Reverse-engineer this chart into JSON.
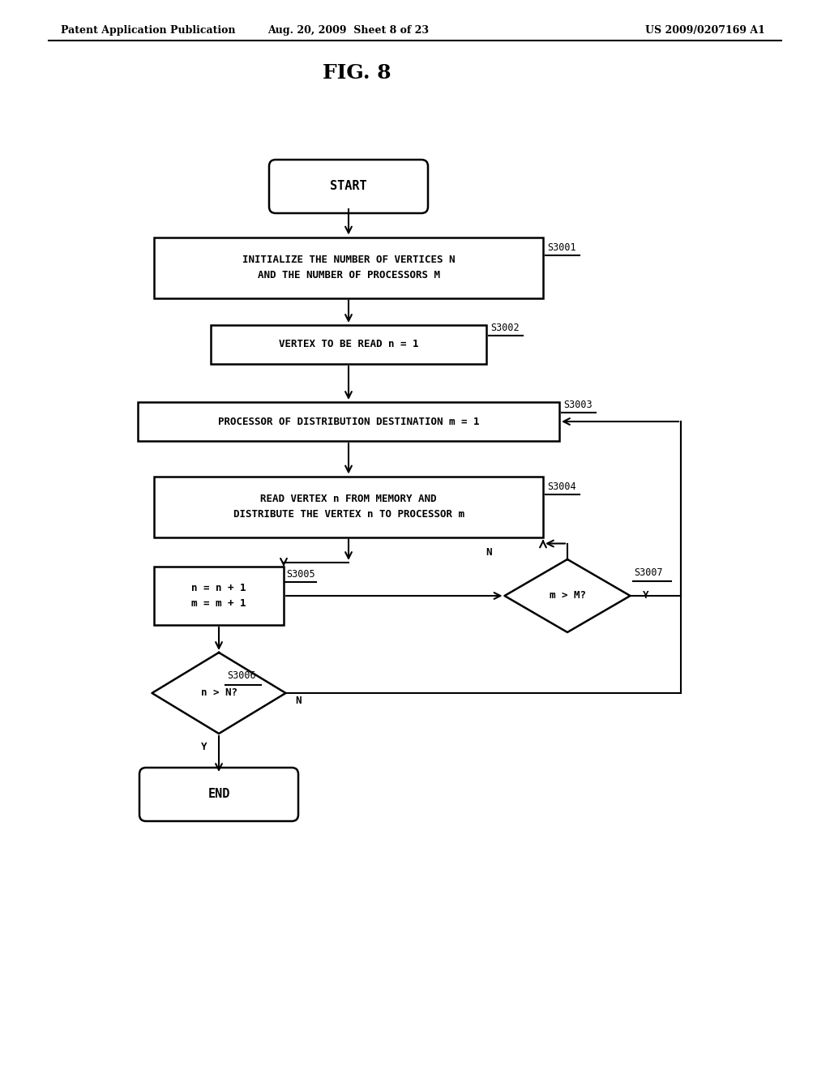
{
  "title": "FIG. 8",
  "header_left": "Patent Application Publication",
  "header_mid": "Aug. 20, 2009  Sheet 8 of 23",
  "header_right": "US 2009/0207169 A1",
  "bg_color": "#ffffff",
  "text_color": "#000000",
  "start_label": "START",
  "end_label": "END",
  "s3001_label": "INITIALIZE THE NUMBER OF VERTICES N\nAND THE NUMBER OF PROCESSORS M",
  "s3002_label": "VERTEX TO BE READ n = 1",
  "s3003_label": "PROCESSOR OF DISTRIBUTION DESTINATION m = 1",
  "s3004_label": "READ VERTEX n FROM MEMORY AND\nDISTRIBUTE THE VERTEX n TO PROCESSOR m",
  "s3005_label": "n = n + 1\nm = m + 1",
  "s3006_label": "n > N?",
  "s3007_label": "m > M?",
  "tag_s3001": "S3001",
  "tag_s3002": "S3002",
  "tag_s3003": "S3003",
  "tag_s3004": "S3004",
  "tag_s3005": "S3005",
  "tag_s3006": "S3006",
  "tag_s3007": "S3007"
}
